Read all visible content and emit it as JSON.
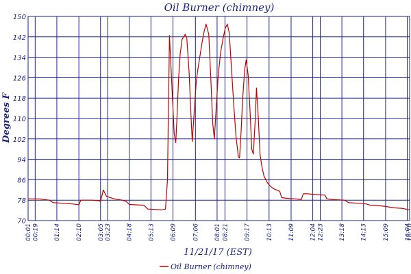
{
  "chart_data": {
    "type": "line",
    "title": "Oil Burner (chimney)",
    "xlabel": "11/21/17 (EST)",
    "ylabel": "Degrees F",
    "ylim": [
      70,
      150
    ],
    "yticks": [
      70,
      78,
      86,
      94,
      102,
      110,
      118,
      126,
      134,
      142,
      150
    ],
    "xlim": [
      "00:01",
      "16:10"
    ],
    "xticks": [
      "00:01",
      "00:19",
      "01:14",
      "02:10",
      "03:05",
      "03:23",
      "04:18",
      "05:13",
      "06:09",
      "07:06",
      "08:01",
      "08:21",
      "09:17",
      "10:13",
      "11:09",
      "12:04",
      "12:23",
      "13:18",
      "14:13",
      "15:09",
      "16:04",
      "16:10"
    ],
    "xtick_labels": [
      "00:01",
      "00:19",
      "01:14",
      "02:10",
      "03:05",
      "03:23",
      "04:18",
      "05:13",
      "06:09",
      "07:06",
      "08:01",
      "08:21",
      "09:17",
      "10:13",
      "11:09",
      "12:04",
      "12:23",
      "13:18",
      "14:13",
      "15:09",
      "16:04",
      "16:10"
    ],
    "grid": true,
    "legend_position": "bottom-center",
    "colors": {
      "line": "#c00000",
      "grid": "#1a237e",
      "text": "#1a237e"
    },
    "series": [
      {
        "name": "Oil Burner (chimney)",
        "points": [
          [
            "00:01",
            78.5
          ],
          [
            "00:30",
            78.5
          ],
          [
            "00:55",
            78.0
          ],
          [
            "01:05",
            77.0
          ],
          [
            "01:30",
            76.8
          ],
          [
            "01:55",
            76.5
          ],
          [
            "02:10",
            76.2
          ],
          [
            "02:15",
            78.0
          ],
          [
            "02:40",
            78.0
          ],
          [
            "03:00",
            77.8
          ],
          [
            "03:05",
            77.5
          ],
          [
            "03:12",
            82.0
          ],
          [
            "03:20",
            79.5
          ],
          [
            "03:40",
            78.5
          ],
          [
            "04:00",
            78.0
          ],
          [
            "04:10",
            77.5
          ],
          [
            "04:18",
            76.3
          ],
          [
            "04:55",
            76.0
          ],
          [
            "05:05",
            74.5
          ],
          [
            "05:40",
            74.2
          ],
          [
            "05:50",
            74.5
          ],
          [
            "05:55",
            86.0
          ],
          [
            "06:00",
            142.5
          ],
          [
            "06:05",
            127.0
          ],
          [
            "06:12",
            104.0
          ],
          [
            "06:16",
            100.5
          ],
          [
            "06:19",
            110.0
          ],
          [
            "06:23",
            125.0
          ],
          [
            "06:27",
            135.0
          ],
          [
            "06:32",
            141.0
          ],
          [
            "06:40",
            143.0
          ],
          [
            "06:44",
            141.5
          ],
          [
            "06:50",
            128.0
          ],
          [
            "06:55",
            110.0
          ],
          [
            "06:58",
            101.0
          ],
          [
            "07:03",
            113.0
          ],
          [
            "07:08",
            124.0
          ],
          [
            "07:12",
            129.0
          ],
          [
            "07:18",
            135.0
          ],
          [
            "07:23",
            140.0
          ],
          [
            "07:28",
            144.0
          ],
          [
            "07:33",
            147.0
          ],
          [
            "07:40",
            143.0
          ],
          [
            "07:45",
            126.0
          ],
          [
            "07:50",
            108.0
          ],
          [
            "07:54",
            102.0
          ],
          [
            "07:59",
            115.0
          ],
          [
            "08:04",
            127.0
          ],
          [
            "08:10",
            136.0
          ],
          [
            "08:17",
            142.0
          ],
          [
            "08:22",
            145.5
          ],
          [
            "08:27",
            147.0
          ],
          [
            "08:32",
            143.5
          ],
          [
            "08:37",
            131.0
          ],
          [
            "08:43",
            116.0
          ],
          [
            "08:49",
            103.0
          ],
          [
            "08:55",
            95.0
          ],
          [
            "08:58",
            94.5
          ],
          [
            "09:02",
            105.0
          ],
          [
            "09:06",
            118.0
          ],
          [
            "09:11",
            129.0
          ],
          [
            "09:15",
            133.0
          ],
          [
            "09:20",
            127.0
          ],
          [
            "09:25",
            112.0
          ],
          [
            "09:29",
            98.0
          ],
          [
            "09:33",
            96.0
          ],
          [
            "09:38",
            110.0
          ],
          [
            "09:41",
            122.0
          ],
          [
            "09:45",
            112.0
          ],
          [
            "09:50",
            96.0
          ],
          [
            "09:55",
            91.0
          ],
          [
            "10:00",
            87.5
          ],
          [
            "10:08",
            85.0
          ],
          [
            "10:16",
            83.5
          ],
          [
            "10:24",
            82.5
          ],
          [
            "10:32",
            82.0
          ],
          [
            "10:40",
            81.5
          ],
          [
            "10:45",
            79.0
          ],
          [
            "11:00",
            78.7
          ],
          [
            "11:20",
            78.5
          ],
          [
            "11:35",
            78.3
          ],
          [
            "11:40",
            80.5
          ],
          [
            "11:50",
            80.5
          ],
          [
            "12:10",
            80.2
          ],
          [
            "12:35",
            80.0
          ],
          [
            "12:40",
            78.5
          ],
          [
            "13:00",
            78.2
          ],
          [
            "13:25",
            78.0
          ],
          [
            "13:35",
            77.0
          ],
          [
            "14:00",
            76.8
          ],
          [
            "14:20",
            76.5
          ],
          [
            "14:30",
            76.0
          ],
          [
            "14:55",
            75.8
          ],
          [
            "15:10",
            75.5
          ],
          [
            "15:30",
            75.0
          ],
          [
            "15:50",
            74.8
          ],
          [
            "16:00",
            74.5
          ],
          [
            "16:10",
            74.2
          ]
        ]
      }
    ]
  }
}
